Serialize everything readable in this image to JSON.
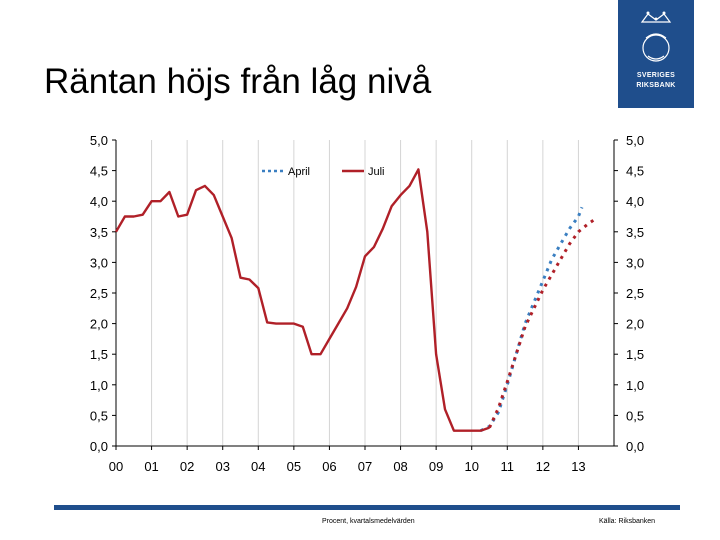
{
  "slide": {
    "title": "Räntan höjs från låg nivå",
    "footer_left": "Procent, kvartalsmedelvärden",
    "footer_right": "Källa: Riksbanken"
  },
  "logo": {
    "line1": "SVERIGES",
    "line2": "RIKSBANK",
    "color": "#1f4e8c"
  },
  "chart_data": {
    "type": "line",
    "title": "",
    "xlabel": "",
    "ylabel": "",
    "x_ticks": [
      "00",
      "01",
      "02",
      "03",
      "04",
      "05",
      "06",
      "07",
      "08",
      "09",
      "10",
      "11",
      "12",
      "13"
    ],
    "y_ticks": [
      "0,0",
      "0,5",
      "1,0",
      "1,5",
      "2,0",
      "2,5",
      "3,0",
      "3,5",
      "4,0",
      "4,5",
      "5,0"
    ],
    "xlim": [
      2000.0,
      2014.0
    ],
    "ylim": [
      0,
      5
    ],
    "grid": "vertical",
    "legend": "top-left",
    "series": [
      {
        "name": "April",
        "color": "#3a7fc1",
        "style": "dotted",
        "points": [
          [
            2010.25,
            0.25
          ],
          [
            2010.5,
            0.32
          ],
          [
            2010.75,
            0.55
          ],
          [
            2011.0,
            1.0
          ],
          [
            2011.25,
            1.5
          ],
          [
            2011.5,
            2.0
          ],
          [
            2011.75,
            2.35
          ],
          [
            2012.0,
            2.7
          ],
          [
            2012.25,
            3.05
          ],
          [
            2012.5,
            3.3
          ],
          [
            2012.75,
            3.55
          ],
          [
            2013.0,
            3.75
          ],
          [
            2013.1,
            3.9
          ]
        ]
      },
      {
        "name": "Juli",
        "color": "#b02028",
        "style": "solid-then-dotted",
        "forecast_start": 2010.5,
        "points": [
          [
            2000.0,
            3.5
          ],
          [
            2000.25,
            3.75
          ],
          [
            2000.5,
            3.75
          ],
          [
            2000.75,
            3.78
          ],
          [
            2001.0,
            4.0
          ],
          [
            2001.25,
            4.0
          ],
          [
            2001.5,
            4.15
          ],
          [
            2001.75,
            3.75
          ],
          [
            2002.0,
            3.78
          ],
          [
            2002.25,
            4.18
          ],
          [
            2002.5,
            4.25
          ],
          [
            2002.75,
            4.1
          ],
          [
            2003.0,
            3.75
          ],
          [
            2003.25,
            3.4
          ],
          [
            2003.5,
            2.75
          ],
          [
            2003.75,
            2.72
          ],
          [
            2004.0,
            2.58
          ],
          [
            2004.25,
            2.02
          ],
          [
            2004.5,
            2.0
          ],
          [
            2004.75,
            2.0
          ],
          [
            2005.0,
            2.0
          ],
          [
            2005.25,
            1.95
          ],
          [
            2005.5,
            1.5
          ],
          [
            2005.75,
            1.5
          ],
          [
            2006.0,
            1.75
          ],
          [
            2006.25,
            2.0
          ],
          [
            2006.5,
            2.25
          ],
          [
            2006.75,
            2.6
          ],
          [
            2007.0,
            3.1
          ],
          [
            2007.25,
            3.25
          ],
          [
            2007.5,
            3.55
          ],
          [
            2007.75,
            3.92
          ],
          [
            2008.0,
            4.1
          ],
          [
            2008.25,
            4.25
          ],
          [
            2008.5,
            4.52
          ],
          [
            2008.75,
            3.5
          ],
          [
            2009.0,
            1.5
          ],
          [
            2009.25,
            0.6
          ],
          [
            2009.5,
            0.25
          ],
          [
            2009.75,
            0.25
          ],
          [
            2010.0,
            0.25
          ],
          [
            2010.25,
            0.25
          ],
          [
            2010.5,
            0.3
          ],
          [
            2010.75,
            0.62
          ],
          [
            2011.0,
            1.05
          ],
          [
            2011.25,
            1.5
          ],
          [
            2011.5,
            1.95
          ],
          [
            2011.75,
            2.25
          ],
          [
            2012.0,
            2.55
          ],
          [
            2012.25,
            2.8
          ],
          [
            2012.5,
            3.05
          ],
          [
            2012.75,
            3.3
          ],
          [
            2013.0,
            3.5
          ],
          [
            2013.25,
            3.62
          ],
          [
            2013.5,
            3.72
          ]
        ]
      }
    ]
  }
}
